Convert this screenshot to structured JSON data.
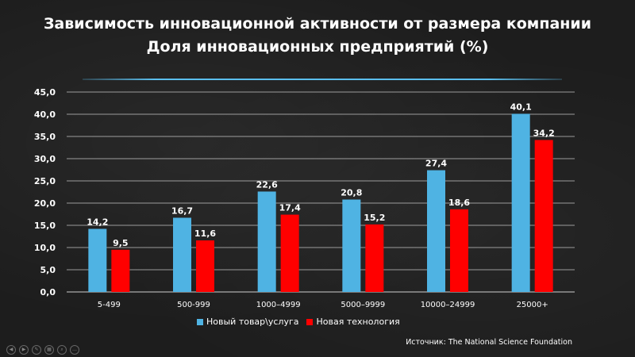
{
  "chart_data": {
    "type": "bar",
    "title": "Зависимость инновационной активности от размера компании",
    "subtitle": "Доля инновационных предприятий (%)",
    "categories": [
      "5-499",
      "500-999",
      "1000–4999",
      "5000–9999",
      "10000–24999",
      "25000+"
    ],
    "series": [
      {
        "name": "Новый товар\\услуга",
        "color": "#4fb3e3",
        "values": [
          14.2,
          16.7,
          22.6,
          20.8,
          27.4,
          40.1
        ],
        "labels": [
          "14,2",
          "16,7",
          "22,6",
          "20,8",
          "27,4",
          "40,1"
        ]
      },
      {
        "name": "Новая технология",
        "color": "#ff0000",
        "values": [
          9.5,
          11.6,
          17.4,
          15.2,
          18.6,
          34.2
        ],
        "labels": [
          "9,5",
          "11,6",
          "17,4",
          "15,2",
          "18,6",
          "34,2"
        ]
      }
    ],
    "ylim": [
      0,
      45
    ],
    "yticks": [
      0,
      5,
      10,
      15,
      20,
      25,
      30,
      35,
      40,
      45
    ],
    "ytick_labels": [
      "0,0",
      "5,0",
      "10,0",
      "15,0",
      "20,0",
      "25,0",
      "30,0",
      "35,0",
      "40,0",
      "45,0"
    ],
    "grid": true,
    "legend": "bottom"
  },
  "source": "Источник: The National Science Foundation"
}
